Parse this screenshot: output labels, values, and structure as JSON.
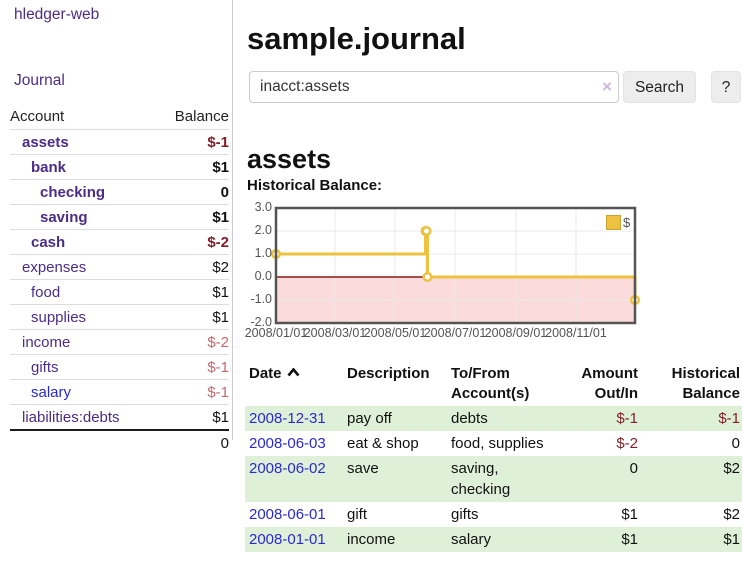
{
  "app": {
    "title": "hledger-web"
  },
  "colors": {
    "link_purple": "#4b2d86",
    "link_blue": "#2a2acf",
    "negative_strong": "#7f1f28",
    "negative_dim": "#c46a6e",
    "row_stripe_green": "#dff0d8",
    "chart_series_gold": "#edc240",
    "chart_negative_region": "#fbdbdb",
    "chart_zero_line": "#8c1717",
    "chart_border": "#545454"
  },
  "icons": {
    "sort_ascending": "caret-up",
    "clear_search": "×"
  },
  "sidebar": {
    "nav_journal": "Journal",
    "accounts_table": {
      "header_account": "Account",
      "header_balance": "Balance",
      "rows": [
        {
          "name": "assets",
          "balance": "$-1",
          "indent": 1,
          "bold": true,
          "balance_style": "neg-strong"
        },
        {
          "name": "bank",
          "balance": "$1",
          "indent": 2,
          "bold": true,
          "balance_style": ""
        },
        {
          "name": "checking",
          "balance": "0",
          "indent": 3,
          "bold": true,
          "balance_style": ""
        },
        {
          "name": "saving",
          "balance": "$1",
          "indent": 3,
          "bold": true,
          "balance_style": ""
        },
        {
          "name": "cash",
          "balance": "$-2",
          "indent": 2,
          "bold": true,
          "balance_style": "neg-strong"
        },
        {
          "name": "expenses",
          "balance": "$2",
          "indent": 1,
          "bold": false,
          "balance_style": ""
        },
        {
          "name": "food",
          "balance": "$1",
          "indent": 2,
          "bold": false,
          "balance_style": ""
        },
        {
          "name": "supplies",
          "balance": "$1",
          "indent": 2,
          "bold": false,
          "balance_style": ""
        },
        {
          "name": "income",
          "balance": "$-2",
          "indent": 1,
          "bold": false,
          "balance_style": "neg-dim"
        },
        {
          "name": "gifts",
          "balance": "$-1",
          "indent": 2,
          "bold": false,
          "balance_style": "neg-dim"
        },
        {
          "name": "salary",
          "balance": "$-1",
          "indent": 2,
          "bold": false,
          "balance_style": "neg-dim",
          "name_style": "blue"
        },
        {
          "name": "liabilities:debts",
          "balance": "$1",
          "indent": 1,
          "bold": false,
          "balance_style": ""
        }
      ],
      "total": "0"
    }
  },
  "header": {
    "title": "sample.journal"
  },
  "search": {
    "value": "inacct:assets",
    "clear_icon": "×",
    "search_button": "Search",
    "help_button": "?"
  },
  "account_page": {
    "heading": "assets",
    "chart_label": "Historical Balance:"
  },
  "chart_data": {
    "type": "line",
    "step": true,
    "title": "Historical Balance",
    "series": [
      {
        "name": "$",
        "color": "#edc240",
        "points": [
          {
            "date": "2008-01-01",
            "day": 0,
            "value": 1
          },
          {
            "date": "2008-06-01",
            "day": 152,
            "value": 2
          },
          {
            "date": "2008-06-02",
            "day": 153,
            "value": 2
          },
          {
            "date": "2008-06-03",
            "day": 154,
            "value": 0
          },
          {
            "date": "2008-12-31",
            "day": 365,
            "value": -1
          }
        ]
      }
    ],
    "ylim": [
      -2,
      3
    ],
    "x_range_days": 365,
    "y_ticks": [
      {
        "value": 3,
        "label": "3.0"
      },
      {
        "value": 2,
        "label": "2.0"
      },
      {
        "value": 1,
        "label": "1.0"
      },
      {
        "value": 0,
        "label": "0.0"
      },
      {
        "value": -1,
        "label": "-1.0"
      },
      {
        "value": -2,
        "label": "-2.0"
      }
    ],
    "x_ticks": [
      {
        "day": 0,
        "label": "2008/01/01"
      },
      {
        "day": 60,
        "label": "2008/03/01"
      },
      {
        "day": 121,
        "label": "2008/05/01"
      },
      {
        "day": 182,
        "label": "2008/07/01"
      },
      {
        "day": 244,
        "label": "2008/09/01"
      },
      {
        "day": 305,
        "label": "2008/11/01"
      }
    ],
    "grid": true,
    "legend": {
      "label": "$",
      "position": "top-right"
    },
    "negative_region_color": "#fbdbdb",
    "zero_line_color": "#8c1717"
  },
  "register_table": {
    "headers": {
      "date": "Date",
      "description": "Description",
      "tofrom_line1": "To/From",
      "tofrom_line2": "Account(s)",
      "amount_line1": "Amount",
      "amount_line2": "Out/In",
      "balance_line1": "Historical",
      "balance_line2": "Balance"
    },
    "sort": {
      "column": "date",
      "direction": "ascending"
    },
    "rows": [
      {
        "date": "2008-12-31",
        "description": "pay off",
        "accounts": "debts",
        "amount": "$-1",
        "amount_neg": true,
        "balance": "$-1",
        "balance_neg": true
      },
      {
        "date": "2008-06-03",
        "description": "eat & shop",
        "accounts": "food, supplies",
        "amount": "$-2",
        "amount_neg": true,
        "balance": "0",
        "balance_neg": false
      },
      {
        "date": "2008-06-02",
        "description": "save",
        "accounts": "saving, checking",
        "amount": "0",
        "amount_neg": false,
        "balance": "$2",
        "balance_neg": false
      },
      {
        "date": "2008-06-01",
        "description": "gift",
        "accounts": "gifts",
        "amount": "$1",
        "amount_neg": false,
        "balance": "$2",
        "balance_neg": false
      },
      {
        "date": "2008-01-01",
        "description": "income",
        "accounts": "salary",
        "amount": "$1",
        "amount_neg": false,
        "balance": "$1",
        "balance_neg": false
      }
    ]
  }
}
